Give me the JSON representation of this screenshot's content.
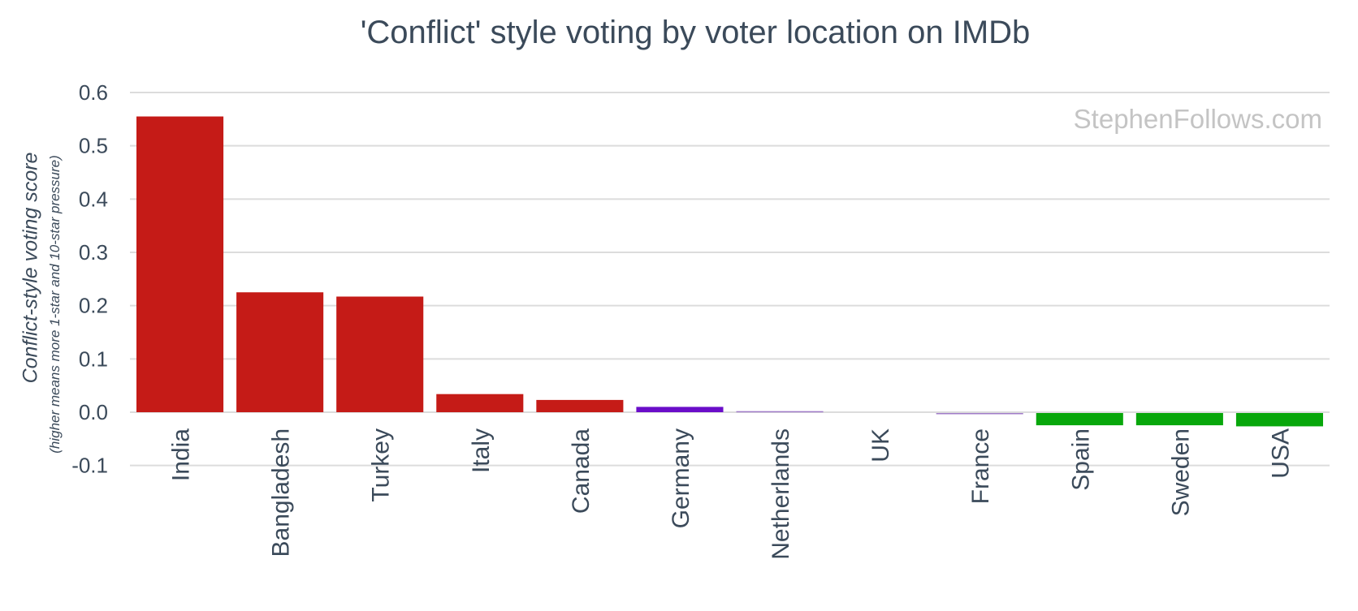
{
  "chart_data": {
    "type": "bar",
    "title": "'Conflict' style voting by voter location on IMDb",
    "ylabel": "Conflict-style voting score",
    "ylabel_subtitle": "(higher means more 1-star and 10-star pressure)",
    "watermark": "StephenFollows.com",
    "categories": [
      "India",
      "Bangladesh",
      "Turkey",
      "Italy",
      "Canada",
      "Germany",
      "Netherlands",
      "UK",
      "France",
      "Spain",
      "Sweden",
      "USA"
    ],
    "values": [
      0.555,
      0.225,
      0.217,
      0.034,
      0.023,
      0.01,
      0.002,
      0.0,
      -0.002,
      -0.023,
      -0.023,
      -0.025
    ],
    "colors": [
      "#c51b17",
      "#c51b17",
      "#c51b17",
      "#c51b17",
      "#c51b17",
      "#6a0dc9",
      "#a07cc8",
      "#a07cc8",
      "#a07cc8",
      "#08a70b",
      "#08a70b",
      "#08a70b"
    ],
    "ylim": [
      -0.1,
      0.6
    ],
    "yticks": [
      "-0.1",
      "0.0",
      "0.1",
      "0.2",
      "0.3",
      "0.4",
      "0.5",
      "0.6"
    ],
    "grid": true,
    "legend": "none"
  }
}
